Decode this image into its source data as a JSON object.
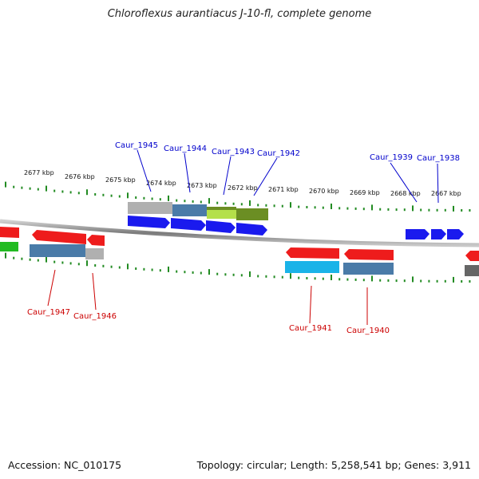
{
  "title": "Chloroflexus aurantiacus J-10-fl, complete genome",
  "footer": {
    "accession": "Accession: NC_010175",
    "topology": "Topology: circular; Length: 5,258,541 bp; Genes: 3,911"
  },
  "colors": {
    "forward_label": "#0000cc",
    "reverse_label": "#cc0000",
    "tick": "#228b22",
    "backbone": "#8a8a8a",
    "red_gene": "#ee1c1c",
    "blue_gene": "#1a1aee",
    "steel_block": "#4a7ba8",
    "gray_block": "#b0b0b0",
    "cyan_block": "#1ab3e8",
    "olive_block": "#6b8e23",
    "lime_block": "#b4e04a",
    "green_gene": "#22bb22",
    "dark_gray_block": "#666666"
  },
  "kbp_ticks": [
    "2677 kbp",
    "2676 kbp",
    "2675 kbp",
    "2674 kbp",
    "2673 kbp",
    "2672 kbp",
    "2671 kbp",
    "2670 kbp",
    "2669 kbp",
    "2668 kbp",
    "2667 kbp"
  ],
  "forward_genes": [
    "Caur_1945",
    "Caur_1944",
    "Caur_1943",
    "Caur_1942",
    "Caur_1939",
    "Caur_1938"
  ],
  "reverse_genes": [
    "Caur_1947",
    "Caur_1946",
    "Caur_1941",
    "Caur_1940"
  ]
}
